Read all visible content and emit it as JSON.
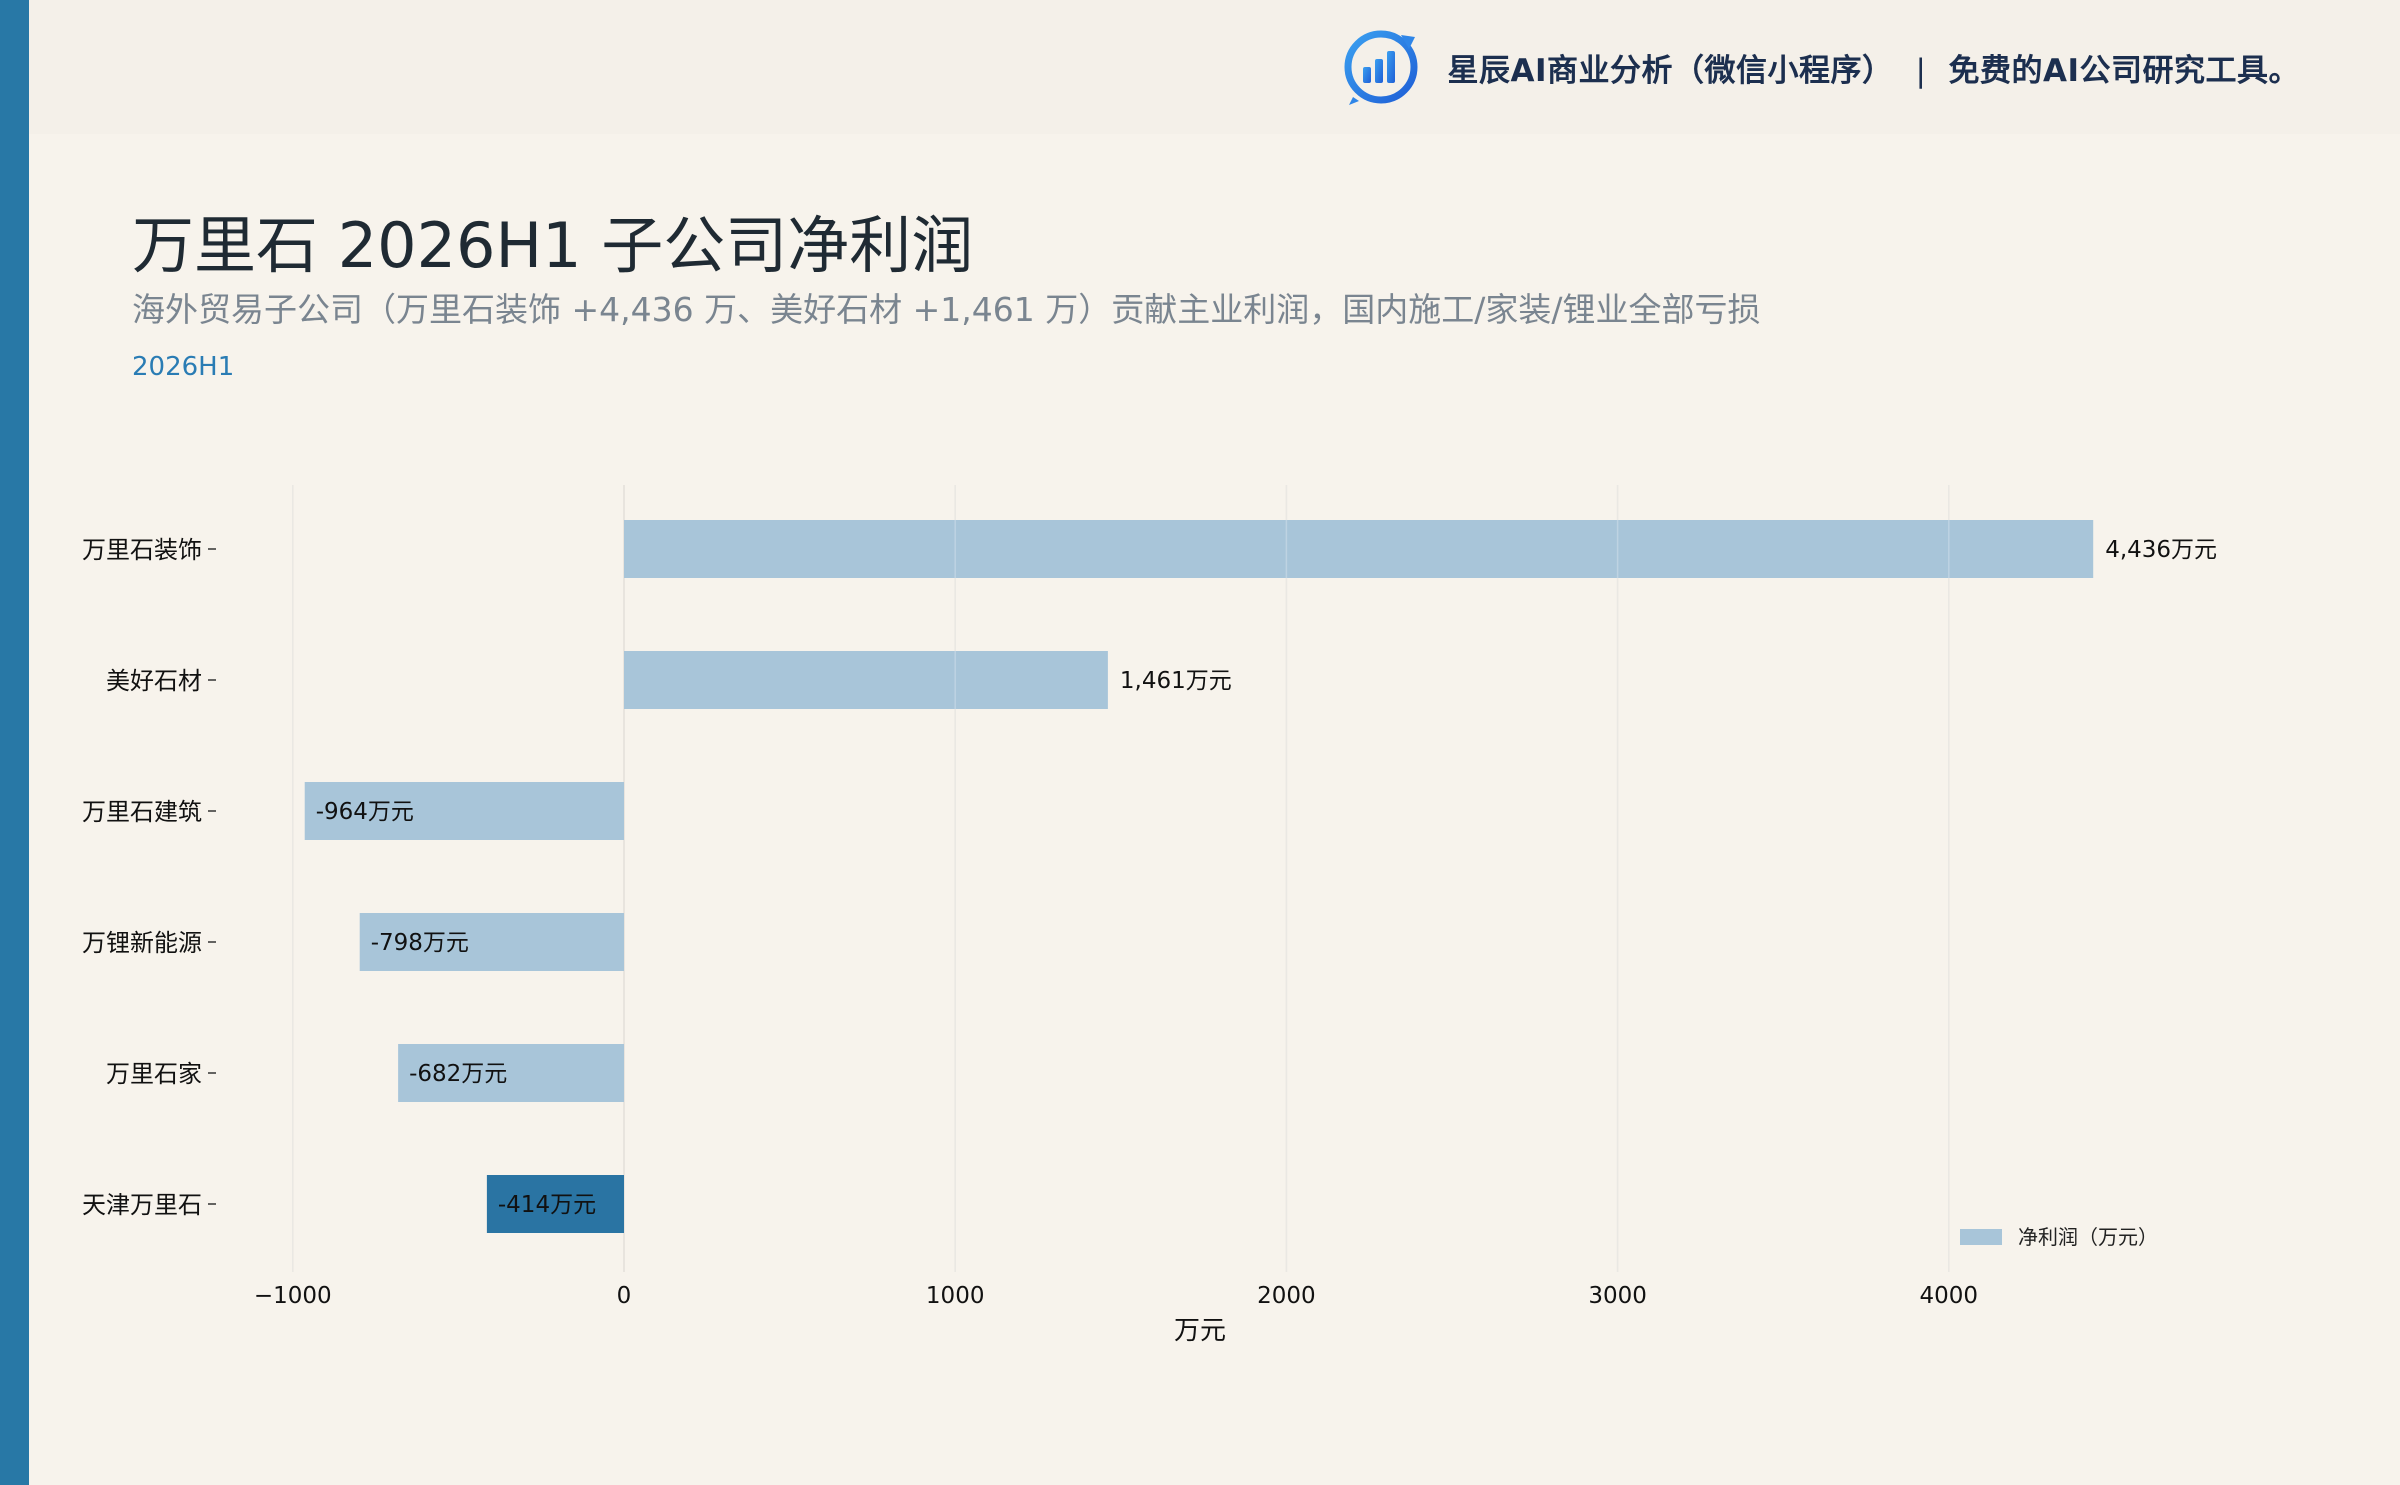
{
  "header": {
    "brand_text": "星辰AI商业分析（微信小程序）",
    "brand_sep": "|",
    "brand_tagline": "免费的AI公司研究工具。",
    "logo_icon": "chart-logo-icon"
  },
  "title": "万里石 2026H1 子公司净利润",
  "subtitle": "海外贸易子公司（万里石装饰 +4,436 万、美好石材 +1,461 万）贡献主业利润，国内施工/家装/锂业全部亏损",
  "period": "2026H1",
  "colors": {
    "accent": "#2878a6",
    "bar": "#a8c5d9",
    "bar_highlight": "#2a74a3",
    "grid": "#e3e0da"
  },
  "chart_data": {
    "type": "bar",
    "orientation": "horizontal",
    "categories": [
      "万里石装饰",
      "美好石材",
      "万里石建筑",
      "万锂新能源",
      "万里石家",
      "天津万里石"
    ],
    "series": [
      {
        "name": "净利润（万元）",
        "values": [
          4436,
          1461,
          -964,
          -798,
          -682,
          -414
        ]
      }
    ],
    "data_labels": [
      "4,436万元",
      "1,461万元",
      "-964万元",
      "-798万元",
      "-682万元",
      "-414万元"
    ],
    "highlight_index": 5,
    "xlabel": "万元",
    "xlim": [
      -1000,
      4500
    ],
    "xticks": [
      -1000,
      0,
      1000,
      2000,
      3000,
      4000
    ],
    "xtick_labels": [
      "−1000",
      "0",
      "1000",
      "2000",
      "3000",
      "4000"
    ],
    "grid": true,
    "legend_position": "bottom-right"
  }
}
